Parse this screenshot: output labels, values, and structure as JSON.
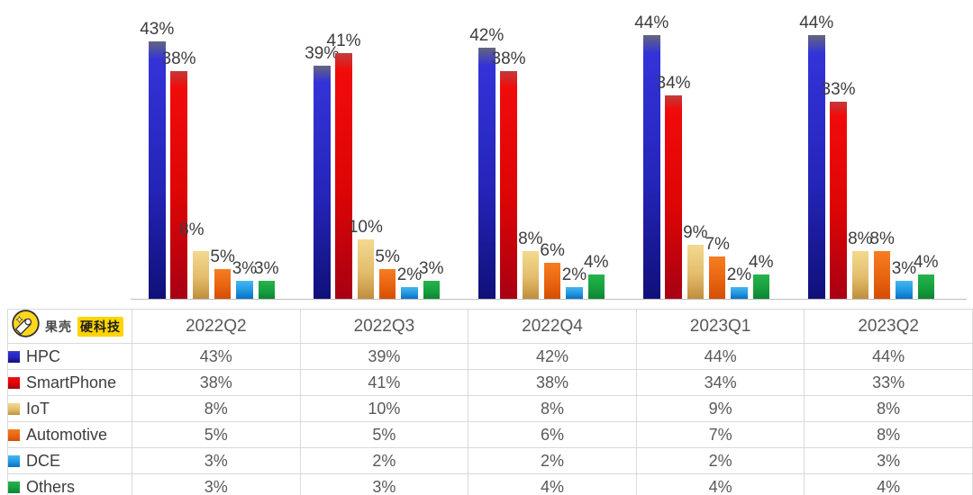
{
  "chart_data": {
    "type": "bar",
    "title": "",
    "xlabel": "",
    "ylabel": "",
    "value_suffix": "%",
    "ylim": [
      0,
      48
    ],
    "grid": false,
    "axis_line_color": "#bdbdbd",
    "label_color": "#3d3d3d",
    "legend_position": "table-left-column",
    "categories": [
      "2022Q2",
      "2022Q3",
      "2022Q4",
      "2023Q1",
      "2023Q2"
    ],
    "series": [
      {
        "name": "HPC",
        "values": [
          43,
          39,
          42,
          44,
          44
        ],
        "gradient": [
          "#65657f 0%",
          "#3333d8 7%",
          "#2525ba 55%",
          "#10107a 100%"
        ],
        "legend_color": "#1c1cb0"
      },
      {
        "name": "SmartPhone",
        "values": [
          38,
          41,
          38,
          34,
          33
        ],
        "gradient": [
          "#c23b3b 0%",
          "#f10b0b 7%",
          "#dd0505 55%",
          "#a80014 100%"
        ],
        "legend_color": "#e00505"
      },
      {
        "name": "IoT",
        "values": [
          8,
          10,
          8,
          9,
          8
        ],
        "gradient": [
          "#f3d98f 0%",
          "#e3bd6c 55%",
          "#bf8e3c 100%"
        ],
        "legend_color": "#d9b155"
      },
      {
        "name": "Automotive",
        "values": [
          5,
          5,
          6,
          7,
          8
        ],
        "gradient": [
          "#f57d22 0%",
          "#e9640f 55%",
          "#d44d05 100%"
        ],
        "legend_color": "#e65c0f"
      },
      {
        "name": "DCE",
        "values": [
          3,
          2,
          2,
          2,
          3
        ],
        "gradient": [
          "#45b7ef 0%",
          "#2196e0 55%",
          "#0a6fc5 100%"
        ],
        "legend_color": "#2196e0"
      },
      {
        "name": "Others",
        "values": [
          3,
          3,
          4,
          4,
          4
        ],
        "gradient": [
          "#27b34c 0%",
          "#17a03f 55%",
          "#0c8531 100%"
        ],
        "legend_color": "#13993f"
      }
    ],
    "label_nudges": [
      {
        "group": 0,
        "series_index": 2,
        "dx": -10,
        "dy": -10
      }
    ]
  },
  "logo": {
    "brand_left": "果壳",
    "brand_highlight": "硬科技",
    "highlight_bg": "#ffd400",
    "circle_color": "#ffd71c",
    "icon": "guokr-hand-logo"
  }
}
